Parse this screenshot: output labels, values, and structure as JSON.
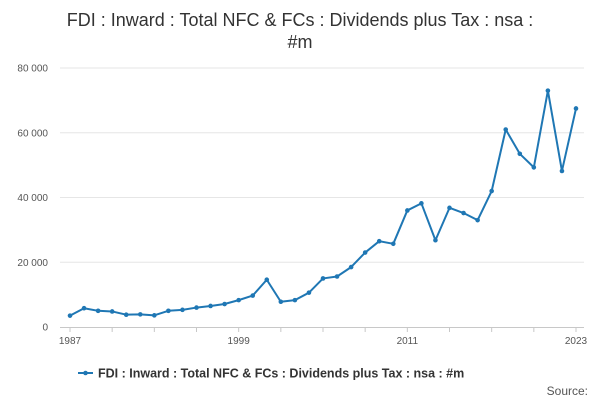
{
  "chart_data": {
    "type": "line",
    "title_lines": [
      "FDI : Inward : Total NFC & FCs : Dividends plus Tax : nsa :",
      "#m"
    ],
    "x": [
      1987,
      1988,
      1989,
      1990,
      1991,
      1992,
      1993,
      1994,
      1995,
      1996,
      1997,
      1998,
      1999,
      2000,
      2001,
      2002,
      2003,
      2004,
      2005,
      2006,
      2007,
      2008,
      2009,
      2010,
      2011,
      2012,
      2013,
      2014,
      2015,
      2016,
      2017,
      2018,
      2019,
      2020,
      2021,
      2022,
      2023
    ],
    "series": [
      {
        "name": "FDI : Inward : Total NFC & FCs : Dividends plus Tax : nsa : #m",
        "color": "#1f77b4",
        "values": [
          3500,
          5800,
          5000,
          4800,
          3800,
          3900,
          3600,
          5000,
          5300,
          6000,
          6500,
          7100,
          8300,
          9700,
          14600,
          7800,
          8300,
          10600,
          15000,
          15600,
          18500,
          23000,
          26500,
          25700,
          36000,
          38200,
          26800,
          36800,
          35200,
          33000,
          42000,
          61000,
          53500,
          49300,
          73000,
          48200,
          67500
        ]
      }
    ],
    "x_ticks": [
      1987,
      1999,
      2011,
      2023
    ],
    "x_tick_labels": [
      "1987",
      "1999",
      "2011",
      "2023"
    ],
    "y_ticks": [
      0,
      20000,
      40000,
      60000,
      80000
    ],
    "y_tick_labels": [
      "0",
      "20 000",
      "40 000",
      "60 000",
      "80 000"
    ],
    "ylim": [
      0,
      80000
    ],
    "xlim": [
      1987,
      2023
    ],
    "grid": true,
    "legend_position": "bottom",
    "xlabel": "",
    "ylabel": ""
  },
  "footer": {
    "source_label": "Source:"
  }
}
